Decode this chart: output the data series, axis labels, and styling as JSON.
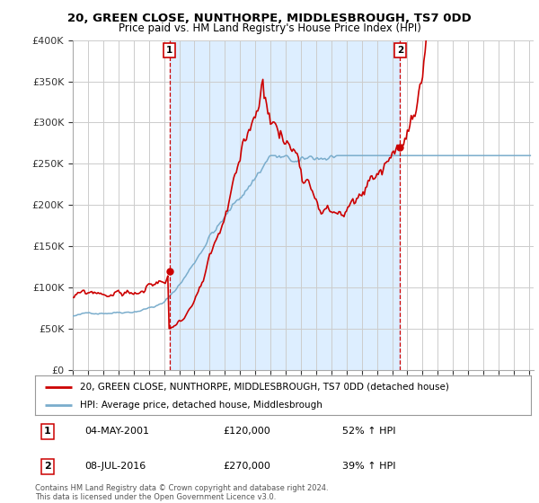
{
  "title": "20, GREEN CLOSE, NUNTHORPE, MIDDLESBROUGH, TS7 0DD",
  "subtitle": "Price paid vs. HM Land Registry's House Price Index (HPI)",
  "x_start_year": 1995,
  "x_end_year": 2025,
  "y_min": 0,
  "y_max": 400000,
  "y_ticks": [
    0,
    50000,
    100000,
    150000,
    200000,
    250000,
    300000,
    350000,
    400000
  ],
  "y_tick_labels": [
    "£0",
    "£50K",
    "£100K",
    "£150K",
    "£200K",
    "£250K",
    "£300K",
    "£350K",
    "£400K"
  ],
  "sale1_date": "04-MAY-2001",
  "sale1_price": 120000,
  "sale1_hpi": "52% ↑ HPI",
  "sale1_x": 2001.35,
  "sale2_date": "08-JUL-2016",
  "sale2_price": 270000,
  "sale2_hpi": "39% ↑ HPI",
  "sale2_x": 2016.52,
  "line1_color": "#cc0000",
  "line2_color": "#7aadcc",
  "shade_color": "#ddeeff",
  "grid_color": "#cccccc",
  "bg_color": "#ffffff",
  "annotation_color": "#cc0000",
  "legend_label1": "20, GREEN CLOSE, NUNTHORPE, MIDDLESBROUGH, TS7 0DD (detached house)",
  "legend_label2": "HPI: Average price, detached house, Middlesbrough",
  "footer": "Contains HM Land Registry data © Crown copyright and database right 2024.\nThis data is licensed under the Open Government Licence v3.0."
}
